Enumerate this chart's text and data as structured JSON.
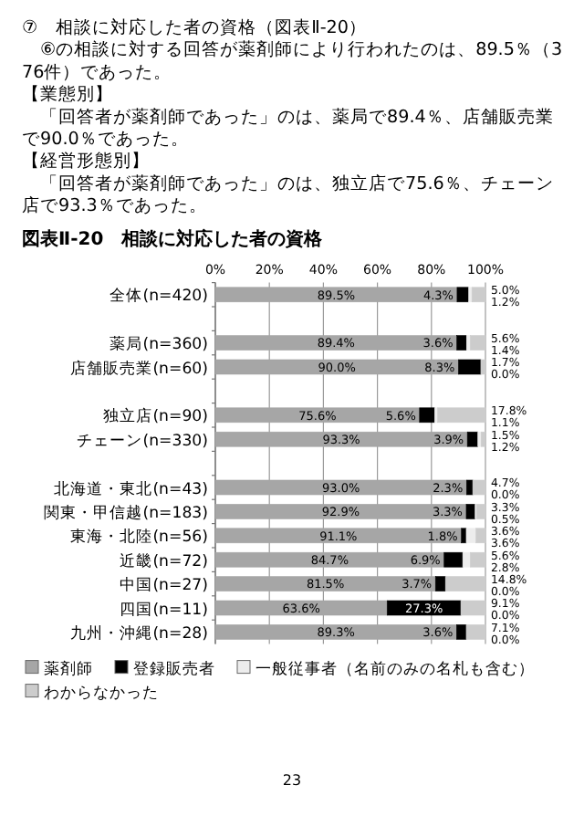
{
  "chart_data": {
    "type": "bar",
    "orientation": "horizontal",
    "stacked": true,
    "title": "図表Ⅱ-20　相談に対応した者の資格",
    "annotations": [
      "⑦　相談に対応した者の資格（図表Ⅱ-20）",
      "⑥の相談に対する回答が薬剤師により行われたのは、89.5％（376件）であった。",
      "【業態別】",
      "「回答者が薬剤師であった」のは、薬局で89.4％、店舗販売業で90.0％であった。",
      "【経営形態別】",
      "「回答者が薬剤師であった」のは、独立店で75.6％、チェーン店で93.3％であった。",
      "23"
    ],
    "categories": [
      "全体(n=420)",
      null,
      "薬局(n=360)",
      "店舗販売業(n=60)",
      null,
      "独立店(n=90)",
      "チェーン(n=330)",
      null,
      "北海道・東北(n=43)",
      "関東・甲信越(n=183)",
      "東海・北陸(n=56)",
      "近畿(n=72)",
      "中国(n=27)",
      "四国(n=11)",
      "九州・沖縄(n=28)"
    ],
    "series": [
      {
        "name": "薬剤師",
        "color": "#a6a6a6",
        "values": [
          89.5,
          null,
          89.4,
          90.0,
          null,
          75.6,
          93.3,
          null,
          93.0,
          92.9,
          91.1,
          84.7,
          81.5,
          63.6,
          89.3
        ],
        "value_labels": [
          "89.5%",
          null,
          "89.4%",
          "90.0%",
          null,
          "75.6%",
          "93.3%",
          null,
          "93.0%",
          "92.9%",
          "91.1%",
          "84.7%",
          "81.5%",
          "63.6%",
          "89.3%"
        ]
      },
      {
        "name": "登録販売者",
        "color": "#000000",
        "values": [
          4.3,
          null,
          3.6,
          8.3,
          null,
          5.6,
          3.9,
          null,
          2.3,
          3.3,
          1.8,
          6.9,
          3.7,
          27.3,
          3.6
        ],
        "value_labels": [
          "4.3%",
          null,
          "3.6%",
          "8.3%",
          null,
          "5.6%",
          "3.9%",
          null,
          "2.3%",
          "3.3%",
          "1.8%",
          "6.9%",
          "3.7%",
          "27.3%",
          "3.6%"
        ]
      },
      {
        "name": "一般従事者（名前のみの名札も含む）",
        "color": "#ededed",
        "values": [
          1.2,
          null,
          1.4,
          0.0,
          null,
          1.1,
          1.2,
          null,
          0.0,
          0.5,
          3.6,
          2.8,
          0.0,
          0.0,
          0.0
        ],
        "value_labels": [
          "1.2%",
          null,
          "1.4%",
          "0.0%",
          null,
          "1.1%",
          "1.2%",
          null,
          "0.0%",
          "0.5%",
          "3.6%",
          "2.8%",
          "0.0%",
          "0.0%",
          "0.0%"
        ]
      },
      {
        "name": "わからなかった",
        "color": "#cccccc",
        "values": [
          5.0,
          null,
          5.6,
          1.7,
          null,
          17.8,
          1.5,
          null,
          4.7,
          3.3,
          3.6,
          5.6,
          14.8,
          9.1,
          7.1
        ],
        "value_labels": [
          "5.0%",
          null,
          "5.6%",
          "1.7%",
          null,
          "17.8%",
          "1.5%",
          null,
          "4.7%",
          "3.3%",
          "3.6%",
          "5.6%",
          "14.8%",
          "9.1%",
          "7.1%"
        ]
      }
    ],
    "xlim": [
      0,
      100
    ],
    "xticks": [
      {
        "value": 0,
        "label": "0%"
      },
      {
        "value": 20,
        "label": "20%"
      },
      {
        "value": 40,
        "label": "40%"
      },
      {
        "value": 60,
        "label": "60%"
      },
      {
        "value": 80,
        "label": "80%"
      },
      {
        "value": 100,
        "label": "100%"
      }
    ],
    "grid": "x",
    "legend": "bottom"
  }
}
